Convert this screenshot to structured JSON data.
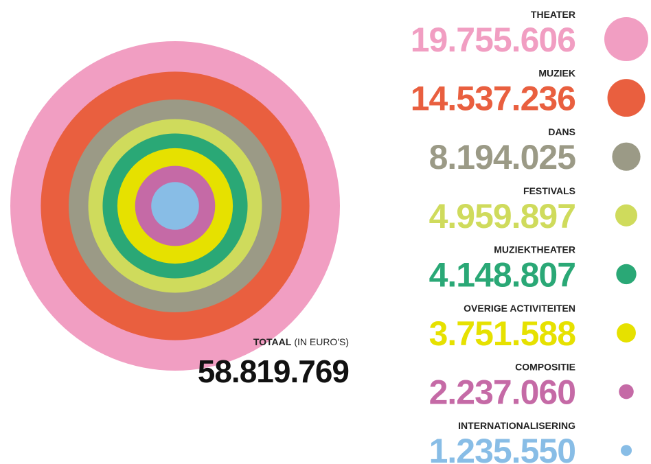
{
  "chart_data": {
    "type": "nested-circles",
    "categories": [
      "THEATER",
      "MUZIEK",
      "DANS",
      "FESTIVALS",
      "MUZIEKTHEATER",
      "OVERIGE ACTIVITEITEN",
      "COMPOSITIE",
      "INTERNATIONALISERING"
    ],
    "values": [
      19755606,
      14537236,
      8194025,
      4959897,
      4148807,
      3751588,
      2237060,
      1235550
    ],
    "value_labels": [
      "19.755.606",
      "14.537.236",
      "8.194.025",
      "4.959.897",
      "4.148.807",
      "3.751.588",
      "2.237.060",
      "1.235.550"
    ],
    "colors": [
      "#f19ec2",
      "#e95f3f",
      "#9b9a86",
      "#cfdb5c",
      "#2aa876",
      "#e6e100",
      "#c56aa6",
      "#88bde6"
    ],
    "total": {
      "value": 58819769,
      "label": "58.819.769"
    },
    "total_title": "TOTAAL",
    "total_unit": "(IN EURO'S)"
  }
}
